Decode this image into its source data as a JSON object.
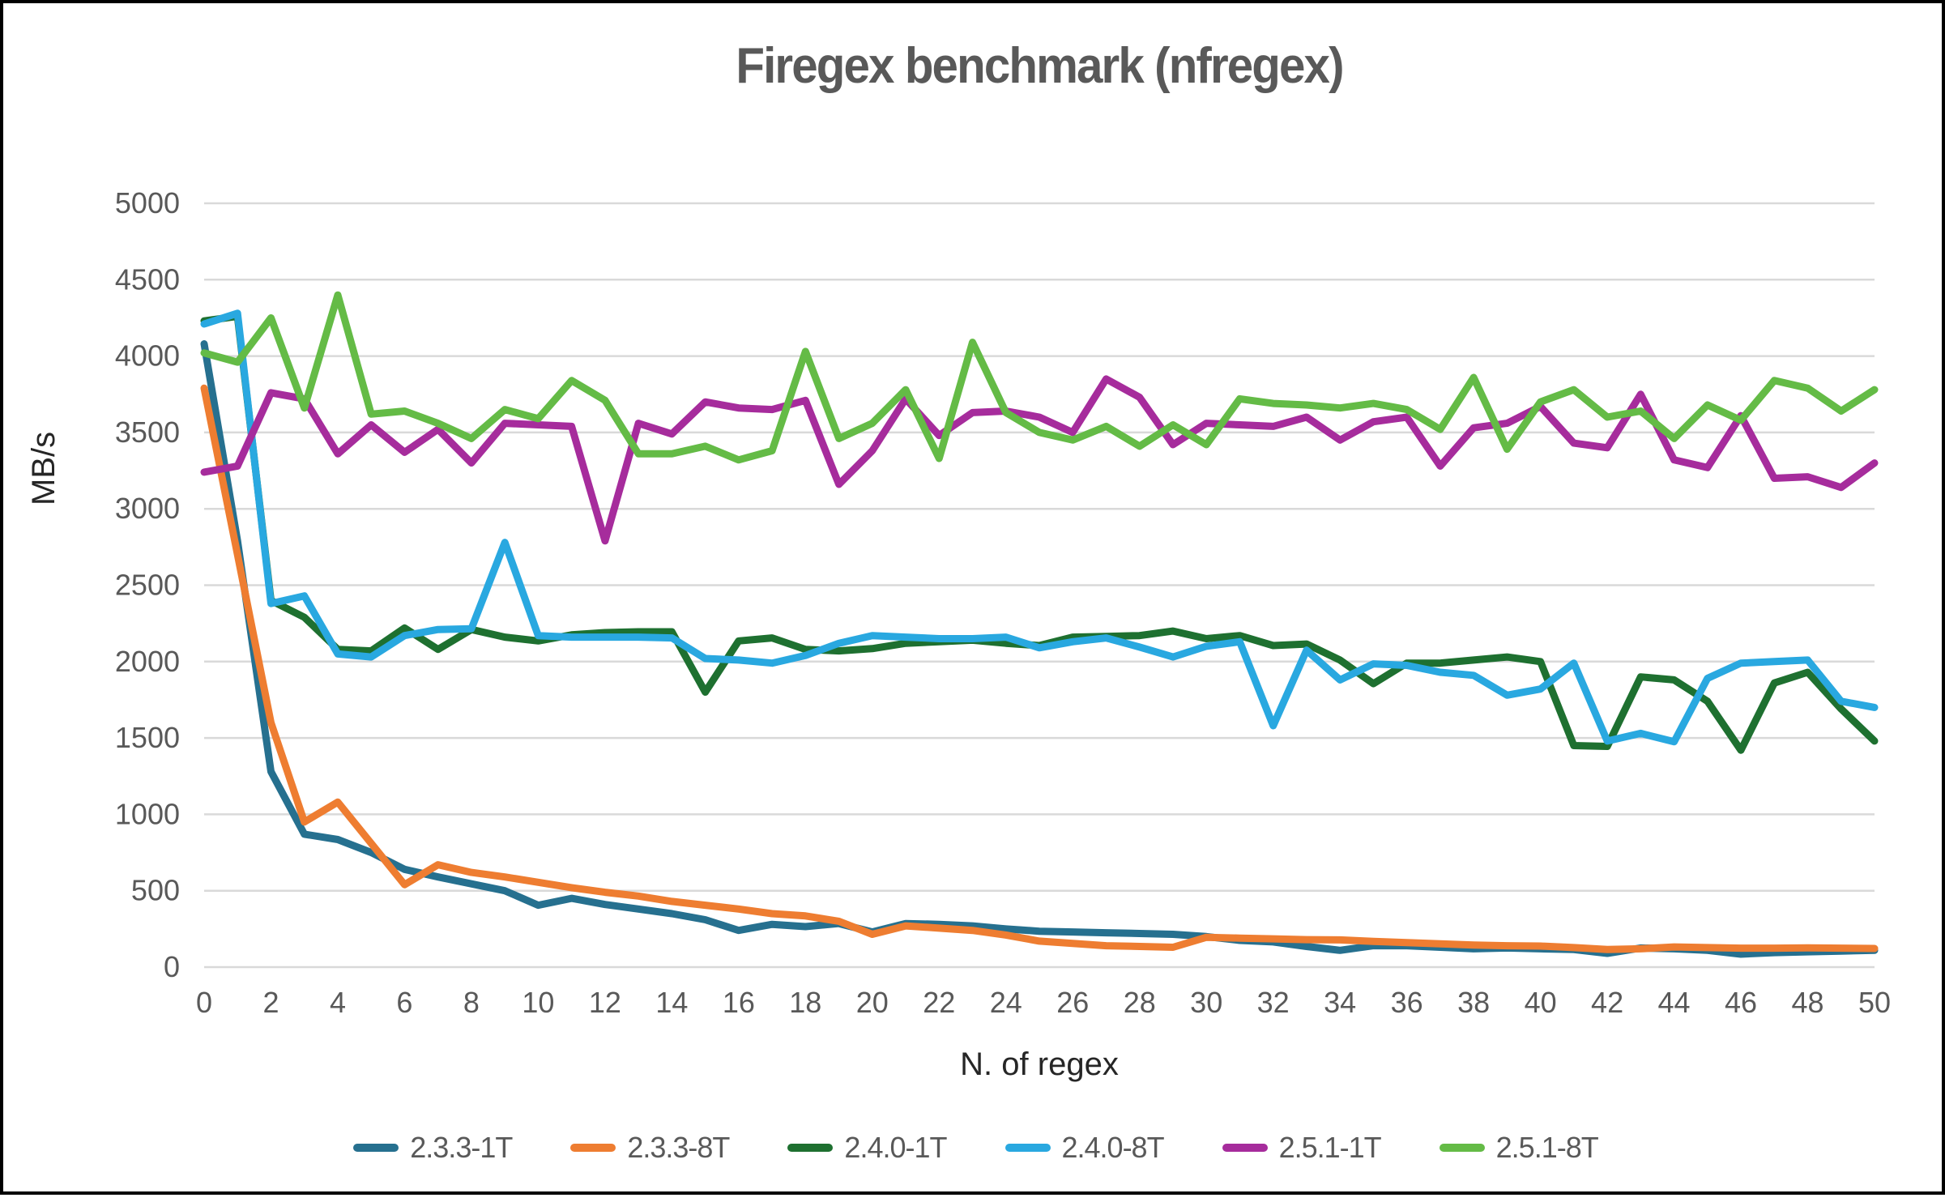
{
  "chart_data": {
    "type": "line",
    "title": "Firegex benchmark (nfregex)",
    "xlabel": "N. of regex",
    "ylabel": "MB/s",
    "x_range": [
      0,
      50
    ],
    "x_tick_step": 2,
    "y_range": [
      0,
      5000
    ],
    "y_tick_step": 500,
    "grid": "horizontal-only",
    "gridline_color": "#D9D9D9",
    "legend_position": "bottom",
    "title_color": "#595959",
    "tick_label_color": "#595959",
    "x": [
      0,
      1,
      2,
      3,
      4,
      5,
      6,
      7,
      8,
      9,
      10,
      11,
      12,
      13,
      14,
      15,
      16,
      17,
      18,
      19,
      20,
      21,
      22,
      23,
      24,
      25,
      26,
      27,
      28,
      29,
      30,
      31,
      32,
      33,
      34,
      35,
      36,
      37,
      38,
      39,
      40,
      41,
      42,
      43,
      44,
      45,
      46,
      47,
      48,
      49,
      50
    ],
    "series": [
      {
        "name": "2.3.3-1T",
        "color": "#26708F",
        "values": [
          4080,
          2790,
          1280,
          870,
          835,
          750,
          640,
          590,
          545,
          500,
          405,
          450,
          410,
          380,
          350,
          310,
          240,
          280,
          265,
          285,
          230,
          285,
          280,
          270,
          250,
          235,
          230,
          225,
          220,
          215,
          200,
          175,
          165,
          135,
          110,
          140,
          140,
          130,
          120,
          125,
          120,
          115,
          90,
          125,
          120,
          110,
          85,
          95,
          100,
          105,
          110
        ]
      },
      {
        "name": "2.3.3-8T",
        "color": "#EE7D31",
        "values": [
          3790,
          2700,
          1600,
          950,
          1080,
          810,
          540,
          670,
          620,
          590,
          555,
          520,
          490,
          465,
          430,
          405,
          380,
          350,
          335,
          300,
          215,
          270,
          255,
          240,
          210,
          170,
          155,
          140,
          135,
          130,
          195,
          190,
          185,
          180,
          178,
          168,
          160,
          152,
          145,
          140,
          138,
          128,
          115,
          120,
          132,
          128,
          124,
          124,
          126,
          124,
          122
        ]
      },
      {
        "name": "2.4.0-1T",
        "color": "#1E7030",
        "values": [
          4230,
          4260,
          2400,
          2290,
          2080,
          2070,
          2220,
          2080,
          2210,
          2160,
          2135,
          2175,
          2190,
          2195,
          2195,
          1800,
          2135,
          2155,
          2080,
          2070,
          2085,
          2120,
          2130,
          2140,
          2120,
          2105,
          2160,
          2165,
          2170,
          2200,
          2150,
          2170,
          2105,
          2115,
          2010,
          1855,
          1990,
          1990,
          2010,
          2030,
          2000,
          1450,
          1445,
          1900,
          1880,
          1740,
          1420,
          1860,
          1930,
          1690,
          1480
        ]
      },
      {
        "name": "2.4.0-8T",
        "color": "#29A8E0",
        "values": [
          4210,
          4280,
          2380,
          2430,
          2050,
          2030,
          2170,
          2210,
          2215,
          2780,
          2170,
          2160,
          2160,
          2160,
          2155,
          2020,
          2010,
          1990,
          2040,
          2120,
          2170,
          2160,
          2150,
          2150,
          2160,
          2090,
          2130,
          2155,
          2095,
          2030,
          2100,
          2130,
          1580,
          2075,
          1880,
          1985,
          1975,
          1930,
          1910,
          1780,
          1820,
          1990,
          1480,
          1530,
          1475,
          1890,
          1990,
          2000,
          2010,
          1740,
          1700
        ]
      },
      {
        "name": "2.5.1-1T",
        "color": "#A62C9C",
        "values": [
          3240,
          3280,
          3760,
          3720,
          3360,
          3550,
          3370,
          3520,
          3300,
          3560,
          3550,
          3540,
          2790,
          3560,
          3490,
          3700,
          3660,
          3650,
          3710,
          3160,
          3380,
          3720,
          3480,
          3630,
          3640,
          3600,
          3500,
          3850,
          3730,
          3420,
          3560,
          3550,
          3540,
          3600,
          3450,
          3570,
          3600,
          3280,
          3530,
          3560,
          3670,
          3430,
          3400,
          3750,
          3320,
          3270,
          3610,
          3200,
          3210,
          3140,
          3300
        ]
      },
      {
        "name": "2.5.1-8T",
        "color": "#64BB46",
        "values": [
          4020,
          3960,
          4250,
          3660,
          4400,
          3620,
          3640,
          3560,
          3460,
          3650,
          3590,
          3840,
          3710,
          3360,
          3360,
          3410,
          3320,
          3380,
          4030,
          3460,
          3560,
          3780,
          3330,
          4090,
          3630,
          3500,
          3450,
          3540,
          3410,
          3550,
          3420,
          3720,
          3690,
          3680,
          3660,
          3690,
          3650,
          3520,
          3860,
          3390,
          3700,
          3780,
          3600,
          3640,
          3460,
          3680,
          3580,
          3840,
          3790,
          3640,
          3780
        ]
      }
    ]
  }
}
